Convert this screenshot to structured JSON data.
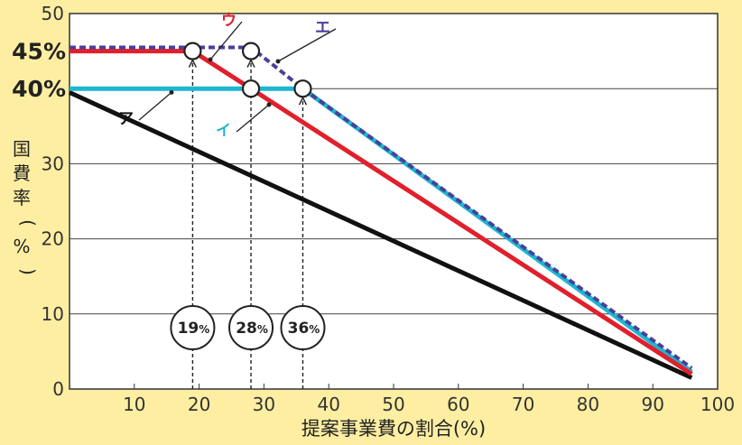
{
  "chart_data": {
    "type": "line",
    "xlabel": "提案事業費の割合(%)",
    "ylabel": "国費率(%)",
    "xlim": [
      0,
      100
    ],
    "ylim": [
      0,
      50
    ],
    "x_ticks": [
      "10",
      "20",
      "30",
      "40",
      "50",
      "60",
      "70",
      "80",
      "90",
      "100"
    ],
    "y_ticks": [
      "0",
      "10",
      "20",
      "30",
      "50"
    ],
    "y_highlight_labels": [
      {
        "value": 45,
        "label": "45%"
      },
      {
        "value": 40,
        "label": "40%"
      }
    ],
    "grid": true,
    "series": [
      {
        "name": "ア",
        "color": "#111111",
        "style": "solid",
        "points": [
          [
            0,
            39.5
          ],
          [
            96,
            1.5
          ]
        ]
      },
      {
        "name": "イ",
        "color": "#1fb6d0",
        "style": "solid",
        "points": [
          [
            0,
            40
          ],
          [
            36,
            40
          ],
          [
            96,
            2.3
          ]
        ]
      },
      {
        "name": "ウ",
        "color": "#e0202c",
        "style": "solid",
        "points": [
          [
            0,
            45
          ],
          [
            19,
            45
          ],
          [
            28,
            40
          ],
          [
            96,
            2.0
          ]
        ]
      },
      {
        "name": "エ",
        "color": "#4a3f9a",
        "style": "dashed",
        "points": [
          [
            0,
            45.5
          ],
          [
            28,
            45.5
          ],
          [
            36,
            40
          ],
          [
            96,
            2.8
          ]
        ]
      }
    ],
    "markers": [
      {
        "x": 19,
        "y": 45
      },
      {
        "x": 28,
        "y": 45
      },
      {
        "x": 28,
        "y": 40
      },
      {
        "x": 36,
        "y": 40
      }
    ],
    "threshold_annotations": [
      {
        "x": 19,
        "num": "19",
        "unit": "%"
      },
      {
        "x": 28,
        "num": "28",
        "unit": "%"
      },
      {
        "x": 36,
        "num": "36",
        "unit": "%"
      }
    ]
  }
}
